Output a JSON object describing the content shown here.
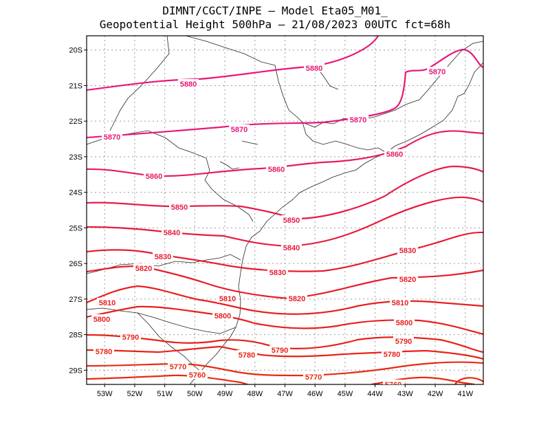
{
  "title": {
    "line1": "DIMNT/CGCT/INPE –  Model Eta05_M01_",
    "line2": "Geopotential Height 500hPa –  21/08/2023 00UTC fct=68h"
  },
  "map": {
    "lat_range": [
      -29.4,
      -19.6
    ],
    "lon_range": [
      -53.6,
      -40.4
    ],
    "lat_ticks": [
      "20S",
      "21S",
      "22S",
      "23S",
      "24S",
      "25S",
      "26S",
      "27S",
      "28S",
      "29S"
    ],
    "lon_ticks": [
      "53W",
      "52W",
      "51W",
      "50W",
      "49W",
      "48W",
      "47W",
      "46W",
      "45W",
      "44W",
      "43W",
      "42W",
      "41W"
    ],
    "gridlines": "dotted"
  },
  "contours": [
    {
      "value": "5880",
      "color": "#e8177a"
    },
    {
      "value": "5870",
      "color": "#e8177a"
    },
    {
      "value": "5860",
      "color": "#e81b5c"
    },
    {
      "value": "5850",
      "color": "#e81b4a"
    },
    {
      "value": "5840",
      "color": "#e81b3c"
    },
    {
      "value": "5830",
      "color": "#e81b30"
    },
    {
      "value": "5820",
      "color": "#e81b28"
    },
    {
      "value": "5810",
      "color": "#e81e1e"
    },
    {
      "value": "5800",
      "color": "#e81e1e"
    },
    {
      "value": "5790",
      "color": "#e82218"
    },
    {
      "value": "5780",
      "color": "#e82218"
    },
    {
      "value": "5770",
      "color": "#e82a12"
    },
    {
      "value": "5760",
      "color": "#e82a12"
    }
  ]
}
